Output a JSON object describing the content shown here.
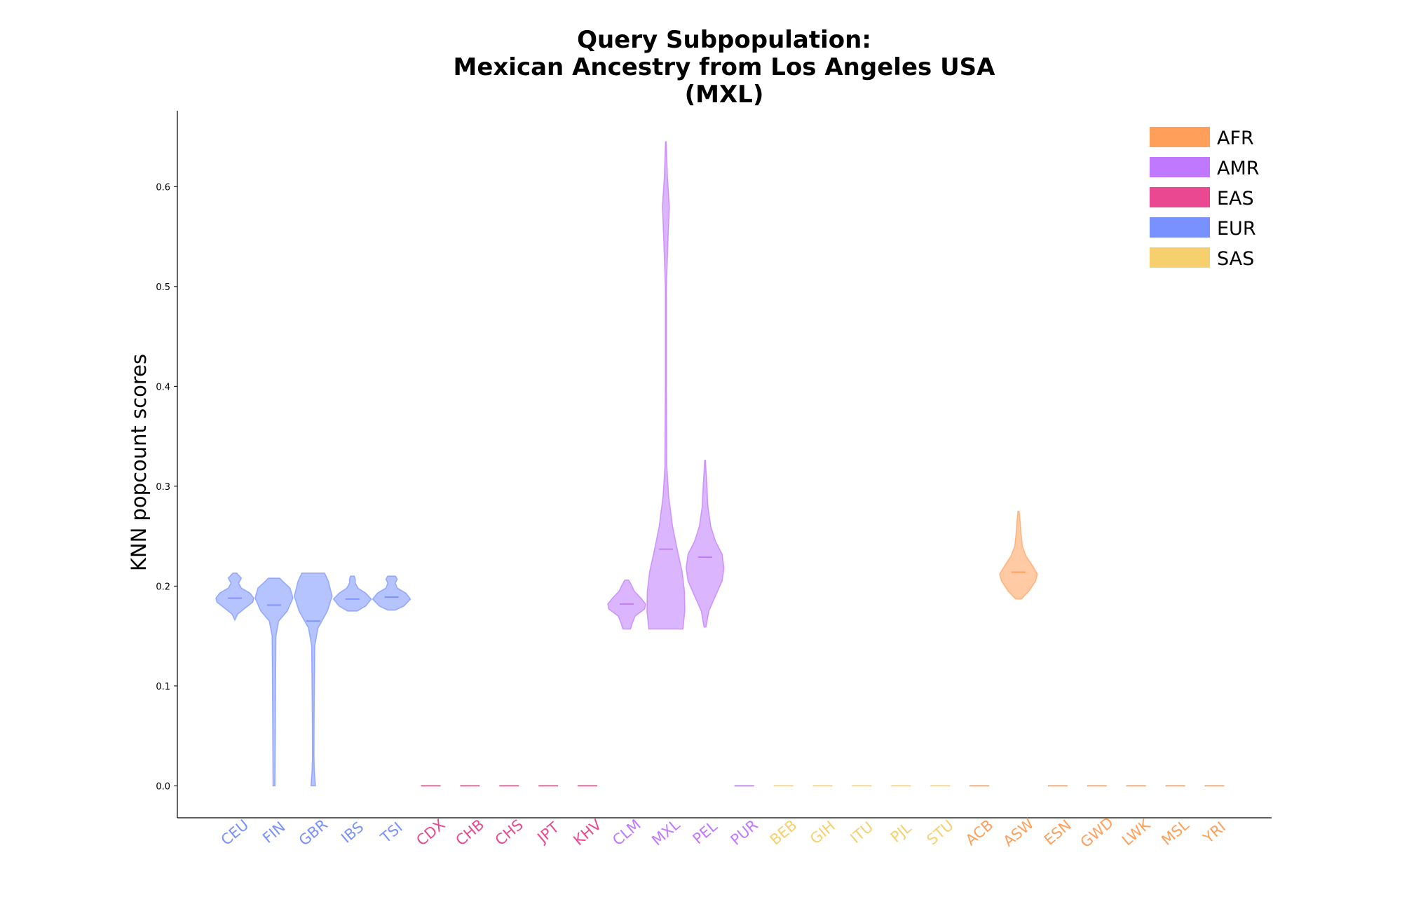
{
  "chart_data": {
    "type": "violin",
    "title": [
      "Query Subpopulation:",
      "Mexican Ancestry from Los Angeles USA",
      "(MXL)"
    ],
    "ylabel": "KNN popcount scores",
    "xlabel": "",
    "ylim": [
      -0.032,
      0.676
    ],
    "yticks": [
      "0.0",
      "0.1",
      "0.2",
      "0.3",
      "0.4",
      "0.5",
      "0.6"
    ],
    "legend_position": "top-right",
    "legend": [
      {
        "label": "AFR",
        "color": "#FF9F5A"
      },
      {
        "label": "AMR",
        "color": "#BF78FF"
      },
      {
        "label": "EAS",
        "color": "#EA4890"
      },
      {
        "label": "EUR",
        "color": "#7891FF"
      },
      {
        "label": "SAS",
        "color": "#F7D06E"
      }
    ],
    "colors": {
      "AFR": "#FF9F5A",
      "AMR": "#BF78FF",
      "EAS": "#EA4890",
      "EUR": "#7891FF",
      "SAS": "#F7D06E"
    },
    "categories": [
      {
        "label": "CEU",
        "group": "EUR",
        "min": 0.166,
        "max": 0.213,
        "median": 0.188,
        "profile": [
          [
            0.166,
            0.0
          ],
          [
            0.172,
            0.15
          ],
          [
            0.178,
            0.55
          ],
          [
            0.184,
            0.95
          ],
          [
            0.188,
            1.0
          ],
          [
            0.193,
            0.8
          ],
          [
            0.198,
            0.35
          ],
          [
            0.203,
            0.2
          ],
          [
            0.208,
            0.35
          ],
          [
            0.213,
            0.1
          ]
        ]
      },
      {
        "label": "FIN",
        "group": "EUR",
        "min": 0.0,
        "max": 0.208,
        "median": 0.181,
        "profile": [
          [
            0.0,
            0.05
          ],
          [
            0.1,
            0.08
          ],
          [
            0.15,
            0.1
          ],
          [
            0.165,
            0.25
          ],
          [
            0.175,
            0.7
          ],
          [
            0.188,
            1.0
          ],
          [
            0.198,
            0.85
          ],
          [
            0.205,
            0.45
          ],
          [
            0.208,
            0.3
          ]
        ]
      },
      {
        "label": "GBR",
        "group": "EUR",
        "min": 0.0,
        "max": 0.213,
        "median": 0.165,
        "profile": [
          [
            0.0,
            0.12
          ],
          [
            0.015,
            0.06
          ],
          [
            0.03,
            0.04
          ],
          [
            0.08,
            0.05
          ],
          [
            0.14,
            0.08
          ],
          [
            0.158,
            0.25
          ],
          [
            0.175,
            0.75
          ],
          [
            0.19,
            1.0
          ],
          [
            0.205,
            0.8
          ],
          [
            0.213,
            0.6
          ]
        ]
      },
      {
        "label": "IBS",
        "group": "EUR",
        "min": 0.175,
        "max": 0.21,
        "median": 0.187,
        "profile": [
          [
            0.175,
            0.25
          ],
          [
            0.18,
            0.7
          ],
          [
            0.187,
            1.0
          ],
          [
            0.193,
            0.7
          ],
          [
            0.198,
            0.3
          ],
          [
            0.203,
            0.15
          ],
          [
            0.207,
            0.15
          ],
          [
            0.21,
            0.1
          ]
        ]
      },
      {
        "label": "TSI",
        "group": "EUR",
        "min": 0.176,
        "max": 0.21,
        "median": 0.189,
        "profile": [
          [
            0.176,
            0.2
          ],
          [
            0.18,
            0.65
          ],
          [
            0.187,
            1.0
          ],
          [
            0.193,
            0.75
          ],
          [
            0.198,
            0.3
          ],
          [
            0.203,
            0.2
          ],
          [
            0.207,
            0.3
          ],
          [
            0.21,
            0.2
          ]
        ]
      },
      {
        "label": "CDX",
        "group": "EAS",
        "min": 0.0,
        "max": 0.0,
        "median": 0.0,
        "profile": []
      },
      {
        "label": "CHB",
        "group": "EAS",
        "min": 0.0,
        "max": 0.0,
        "median": 0.0,
        "profile": []
      },
      {
        "label": "CHS",
        "group": "EAS",
        "min": 0.0,
        "max": 0.0,
        "median": 0.0,
        "profile": []
      },
      {
        "label": "JPT",
        "group": "EAS",
        "min": 0.0,
        "max": 0.0,
        "median": 0.0,
        "profile": []
      },
      {
        "label": "KHV",
        "group": "EAS",
        "min": 0.0,
        "max": 0.0,
        "median": 0.0,
        "profile": []
      },
      {
        "label": "CLM",
        "group": "AMR",
        "min": 0.157,
        "max": 0.206,
        "median": 0.182,
        "profile": [
          [
            0.157,
            0.2
          ],
          [
            0.163,
            0.3
          ],
          [
            0.17,
            0.45
          ],
          [
            0.177,
            0.95
          ],
          [
            0.182,
            1.0
          ],
          [
            0.188,
            0.75
          ],
          [
            0.195,
            0.4
          ],
          [
            0.201,
            0.25
          ],
          [
            0.206,
            0.1
          ]
        ]
      },
      {
        "label": "MXL",
        "group": "AMR",
        "min": 0.157,
        "max": 0.645,
        "median": 0.237,
        "profile": [
          [
            0.157,
            0.9
          ],
          [
            0.175,
            1.0
          ],
          [
            0.195,
            0.98
          ],
          [
            0.215,
            0.85
          ],
          [
            0.235,
            0.62
          ],
          [
            0.26,
            0.35
          ],
          [
            0.29,
            0.15
          ],
          [
            0.32,
            0.05
          ],
          [
            0.4,
            0.03
          ],
          [
            0.5,
            0.03
          ],
          [
            0.55,
            0.12
          ],
          [
            0.58,
            0.18
          ],
          [
            0.61,
            0.08
          ],
          [
            0.645,
            0.02
          ]
        ]
      },
      {
        "label": "PEL",
        "group": "AMR",
        "min": 0.159,
        "max": 0.326,
        "median": 0.229,
        "profile": [
          [
            0.159,
            0.05
          ],
          [
            0.175,
            0.2
          ],
          [
            0.19,
            0.55
          ],
          [
            0.205,
            0.9
          ],
          [
            0.218,
            1.0
          ],
          [
            0.232,
            0.9
          ],
          [
            0.245,
            0.55
          ],
          [
            0.26,
            0.3
          ],
          [
            0.28,
            0.15
          ],
          [
            0.3,
            0.1
          ],
          [
            0.326,
            0.02
          ]
        ]
      },
      {
        "label": "PUR",
        "group": "AMR",
        "min": 0.0,
        "max": 0.0,
        "median": 0.0,
        "profile": []
      },
      {
        "label": "BEB",
        "group": "SAS",
        "min": 0.0,
        "max": 0.0,
        "median": 0.0,
        "profile": []
      },
      {
        "label": "GIH",
        "group": "SAS",
        "min": 0.0,
        "max": 0.0,
        "median": 0.0,
        "profile": []
      },
      {
        "label": "ITU",
        "group": "SAS",
        "min": 0.0,
        "max": 0.0,
        "median": 0.0,
        "profile": []
      },
      {
        "label": "PJL",
        "group": "SAS",
        "min": 0.0,
        "max": 0.0,
        "median": 0.0,
        "profile": []
      },
      {
        "label": "STU",
        "group": "SAS",
        "min": 0.0,
        "max": 0.0,
        "median": 0.0,
        "profile": []
      },
      {
        "label": "ACB",
        "group": "AFR",
        "min": 0.0,
        "max": 0.0,
        "median": 0.0,
        "profile": []
      },
      {
        "label": "ASW",
        "group": "AFR",
        "min": 0.187,
        "max": 0.275,
        "median": 0.214,
        "profile": [
          [
            0.187,
            0.15
          ],
          [
            0.195,
            0.55
          ],
          [
            0.205,
            0.9
          ],
          [
            0.212,
            1.0
          ],
          [
            0.22,
            0.75
          ],
          [
            0.23,
            0.4
          ],
          [
            0.24,
            0.2
          ],
          [
            0.255,
            0.12
          ],
          [
            0.265,
            0.08
          ],
          [
            0.275,
            0.03
          ]
        ]
      },
      {
        "label": "ESN",
        "group": "AFR",
        "min": 0.0,
        "max": 0.0,
        "median": 0.0,
        "profile": []
      },
      {
        "label": "GWD",
        "group": "AFR",
        "min": 0.0,
        "max": 0.0,
        "median": 0.0,
        "profile": []
      },
      {
        "label": "LWK",
        "group": "AFR",
        "min": 0.0,
        "max": 0.0,
        "median": 0.0,
        "profile": []
      },
      {
        "label": "MSL",
        "group": "AFR",
        "min": 0.0,
        "max": 0.0,
        "median": 0.0,
        "profile": []
      },
      {
        "label": "YRI",
        "group": "AFR",
        "min": 0.0,
        "max": 0.0,
        "median": 0.0,
        "profile": []
      }
    ]
  }
}
